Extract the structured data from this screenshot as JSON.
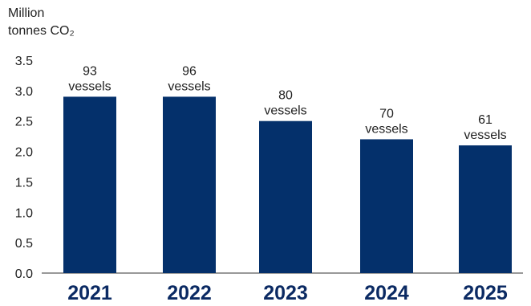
{
  "chart_data": {
    "type": "bar",
    "ylabel_line1": "Million",
    "ylabel_line2": "tonnes CO₂",
    "categories": [
      "2021",
      "2022",
      "2023",
      "2024",
      "2025"
    ],
    "values": [
      2.9,
      2.9,
      2.5,
      2.2,
      2.1
    ],
    "data_labels": [
      {
        "count": "93",
        "unit": "vessels"
      },
      {
        "count": "96",
        "unit": "vessels"
      },
      {
        "count": "80",
        "unit": "vessels"
      },
      {
        "count": "70",
        "unit": "vessels"
      },
      {
        "count": "61",
        "unit": "vessels"
      }
    ],
    "ylim": [
      0,
      3.5
    ],
    "yticks": [
      "0.0",
      "0.5",
      "1.0",
      "1.5",
      "2.0",
      "2.5",
      "3.0",
      "3.5"
    ],
    "bar_color": "#04306b",
    "grid": false
  }
}
